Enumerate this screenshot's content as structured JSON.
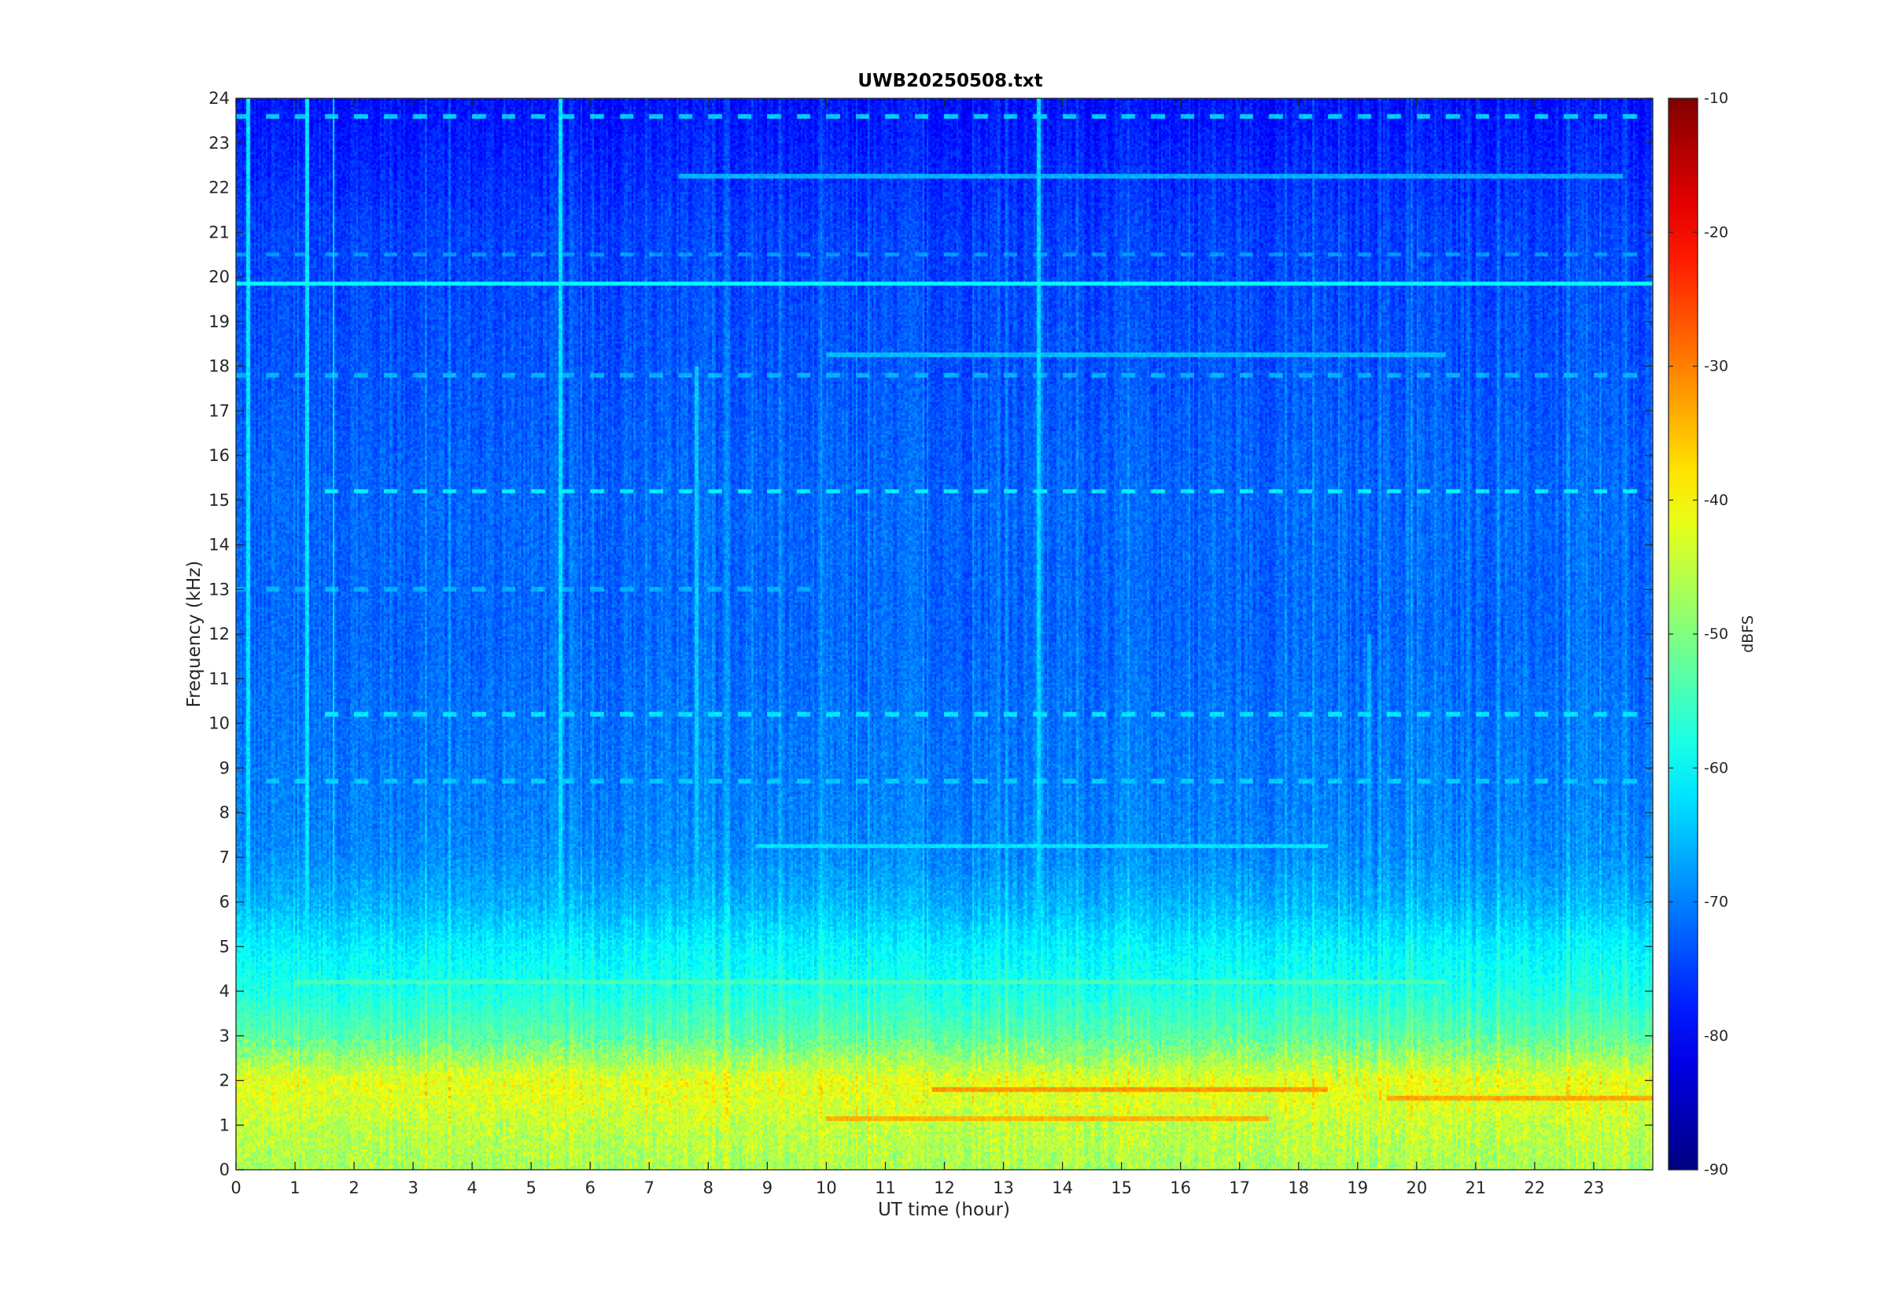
{
  "chart_data": {
    "type": "heatmap",
    "title": "UWB20250508.txt",
    "xlabel": "UT time (hour)",
    "ylabel": "Frequency (kHz)",
    "xlim": [
      0,
      24
    ],
    "ylim": [
      0,
      24
    ],
    "xticks": [
      0,
      1,
      2,
      3,
      4,
      5,
      6,
      7,
      8,
      9,
      10,
      11,
      12,
      13,
      14,
      15,
      16,
      17,
      18,
      19,
      20,
      21,
      22,
      23
    ],
    "yticks": [
      0,
      1,
      2,
      3,
      4,
      5,
      6,
      7,
      8,
      9,
      10,
      11,
      12,
      13,
      14,
      15,
      16,
      17,
      18,
      19,
      20,
      21,
      22,
      23,
      24
    ],
    "colorbar": {
      "label": "dBFS",
      "colormap": "jet",
      "clim": [
        -90,
        -10
      ],
      "ticks": [
        -10,
        -20,
        -30,
        -40,
        -50,
        -60,
        -70,
        -80,
        -90
      ]
    },
    "background_profile": {
      "freq_khz": [
        0,
        0.5,
        1,
        1.5,
        2,
        2.5,
        3,
        4,
        5,
        6,
        7,
        8,
        10,
        12,
        15,
        17,
        19,
        21,
        22.5,
        24
      ],
      "level_dbfs": [
        -47,
        -46,
        -45,
        -43,
        -42,
        -48,
        -53,
        -58,
        -61,
        -66,
        -69,
        -70,
        -71,
        -72,
        -72,
        -73,
        -74,
        -75,
        -77,
        -79
      ]
    },
    "horizontal_lines": [
      {
        "freq_khz": 19.85,
        "level_dbfs": -60,
        "t_start": 0,
        "t_end": 24
      },
      {
        "freq_khz": 18.25,
        "level_dbfs": -65,
        "t_start": 10,
        "t_end": 20.5
      },
      {
        "freq_khz": 22.25,
        "level_dbfs": -66,
        "t_start": 7.5,
        "t_end": 23.5
      },
      {
        "freq_khz": 7.25,
        "level_dbfs": -62,
        "t_start": 8.8,
        "t_end": 18.5
      },
      {
        "freq_khz": 4.2,
        "level_dbfs": -54,
        "t_start": 1,
        "t_end": 20.5
      },
      {
        "freq_khz": 1.8,
        "level_dbfs": -32,
        "t_start": 11.8,
        "t_end": 18.5
      },
      {
        "freq_khz": 1.15,
        "level_dbfs": -34,
        "t_start": 10,
        "t_end": 17.5
      },
      {
        "freq_khz": 1.6,
        "level_dbfs": -33,
        "t_start": 19.5,
        "t_end": 24
      }
    ],
    "dashed_lines": [
      {
        "freq_khz": 15.2,
        "level_dbfs": -61,
        "t_start": 1.2,
        "t_end": 24
      },
      {
        "freq_khz": 10.2,
        "level_dbfs": -62,
        "t_start": 1.2,
        "t_end": 24
      },
      {
        "freq_khz": 8.7,
        "level_dbfs": -64,
        "t_start": 0.5,
        "t_end": 24
      },
      {
        "freq_khz": 17.8,
        "level_dbfs": -66,
        "t_start": 0,
        "t_end": 24
      },
      {
        "freq_khz": 20.5,
        "level_dbfs": -68,
        "t_start": 0,
        "t_end": 24
      },
      {
        "freq_khz": 23.6,
        "level_dbfs": -64,
        "t_start": 0,
        "t_end": 24
      },
      {
        "freq_khz": 13.0,
        "level_dbfs": -66,
        "t_start": 0,
        "t_end": 10
      }
    ],
    "vertical_spikes": [
      {
        "t_hour": 0.2,
        "level_dbfs": -62,
        "f_top": 24
      },
      {
        "t_hour": 1.2,
        "level_dbfs": -62,
        "f_top": 24
      },
      {
        "t_hour": 1.65,
        "level_dbfs": -63,
        "f_top": 24
      },
      {
        "t_hour": 5.5,
        "level_dbfs": -62,
        "f_top": 24
      },
      {
        "t_hour": 13.6,
        "level_dbfs": -63,
        "f_top": 24
      },
      {
        "t_hour": 7.8,
        "level_dbfs": -64,
        "f_top": 18
      },
      {
        "t_hour": 19.2,
        "level_dbfs": -66,
        "f_top": 12
      }
    ]
  }
}
